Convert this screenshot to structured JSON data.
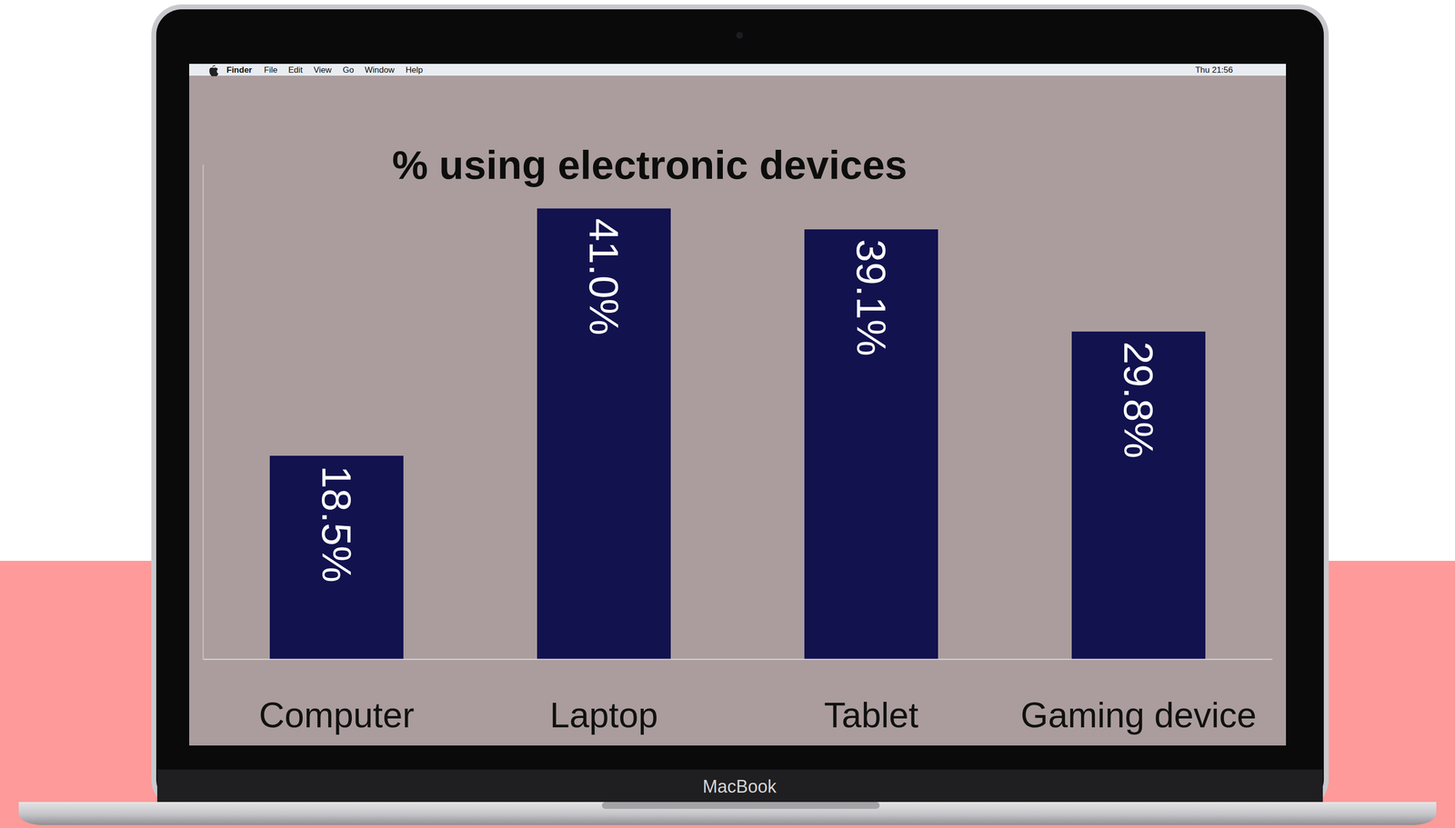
{
  "screen": {
    "menu_app": "Finder",
    "menu_items": [
      "File",
      "Edit",
      "View",
      "Go",
      "Window",
      "Help"
    ],
    "clock": "Thu 21:56",
    "brand": "MacBook"
  },
  "chart_data": {
    "type": "bar",
    "title": "% using electronic devices",
    "categories": [
      "Computer",
      "Laptop",
      "Tablet",
      "Gaming device"
    ],
    "values": [
      18.5,
      41.0,
      39.1,
      29.8
    ],
    "value_labels": [
      "18.5%",
      "41.0%",
      "39.1%",
      "29.8%"
    ],
    "color": "#12124f",
    "ylim": [
      0,
      45
    ],
    "yticks": [],
    "data_labels": true,
    "tick_labels": "x",
    "grid": false
  }
}
